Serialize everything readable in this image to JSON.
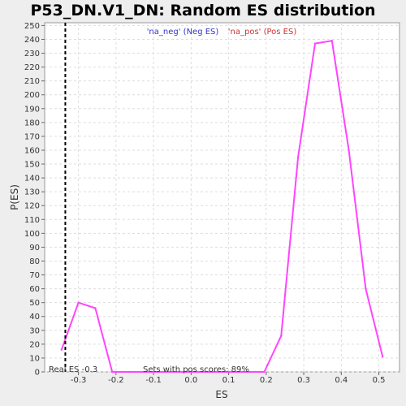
{
  "chart_data": {
    "type": "line",
    "title": "P53_DN.V1_DN: Random ES distribution",
    "xlabel": "ES",
    "ylabel": "P(ES)",
    "xlim": [
      -0.39,
      0.555
    ],
    "ylim": [
      0,
      252
    ],
    "xticks": [
      -0.3,
      -0.2,
      -0.1,
      0.0,
      0.1,
      0.2,
      0.3,
      0.4,
      0.5
    ],
    "xtick_labels": [
      "-0.3",
      "-0.2",
      "-0.1",
      "0.0",
      "0.1",
      "0.2",
      "0.3",
      "0.4",
      "0.5"
    ],
    "yticks": [
      0,
      10,
      20,
      30,
      40,
      50,
      60,
      70,
      80,
      90,
      100,
      110,
      120,
      130,
      140,
      150,
      160,
      170,
      180,
      190,
      200,
      210,
      220,
      230,
      240,
      250
    ],
    "grid": true,
    "legend": {
      "placement": "top-center",
      "neg_label": "'na_neg' (Neg ES)",
      "pos_label": "'na_pos' (Pos ES)",
      "neg_color": "#3333cc",
      "pos_color": "#cc3333"
    },
    "series": [
      {
        "color": "#ff44ff",
        "x": [
          -0.345,
          -0.3,
          -0.255,
          -0.21,
          -0.165,
          -0.12,
          -0.075,
          -0.03,
          0.015,
          0.06,
          0.105,
          0.15,
          0.195,
          0.24,
          0.285,
          0.33,
          0.375,
          0.42,
          0.465,
          0.51
        ],
        "y": [
          16,
          50,
          46,
          0,
          0,
          0,
          0,
          0,
          0,
          0,
          0,
          0,
          0,
          26,
          155,
          237,
          239,
          160,
          60,
          11
        ]
      }
    ],
    "real_es": {
      "value": -0.335,
      "label": "Real ES -0.3",
      "color": "#000000"
    },
    "annotation": "Sets with pos scores: 89%"
  }
}
